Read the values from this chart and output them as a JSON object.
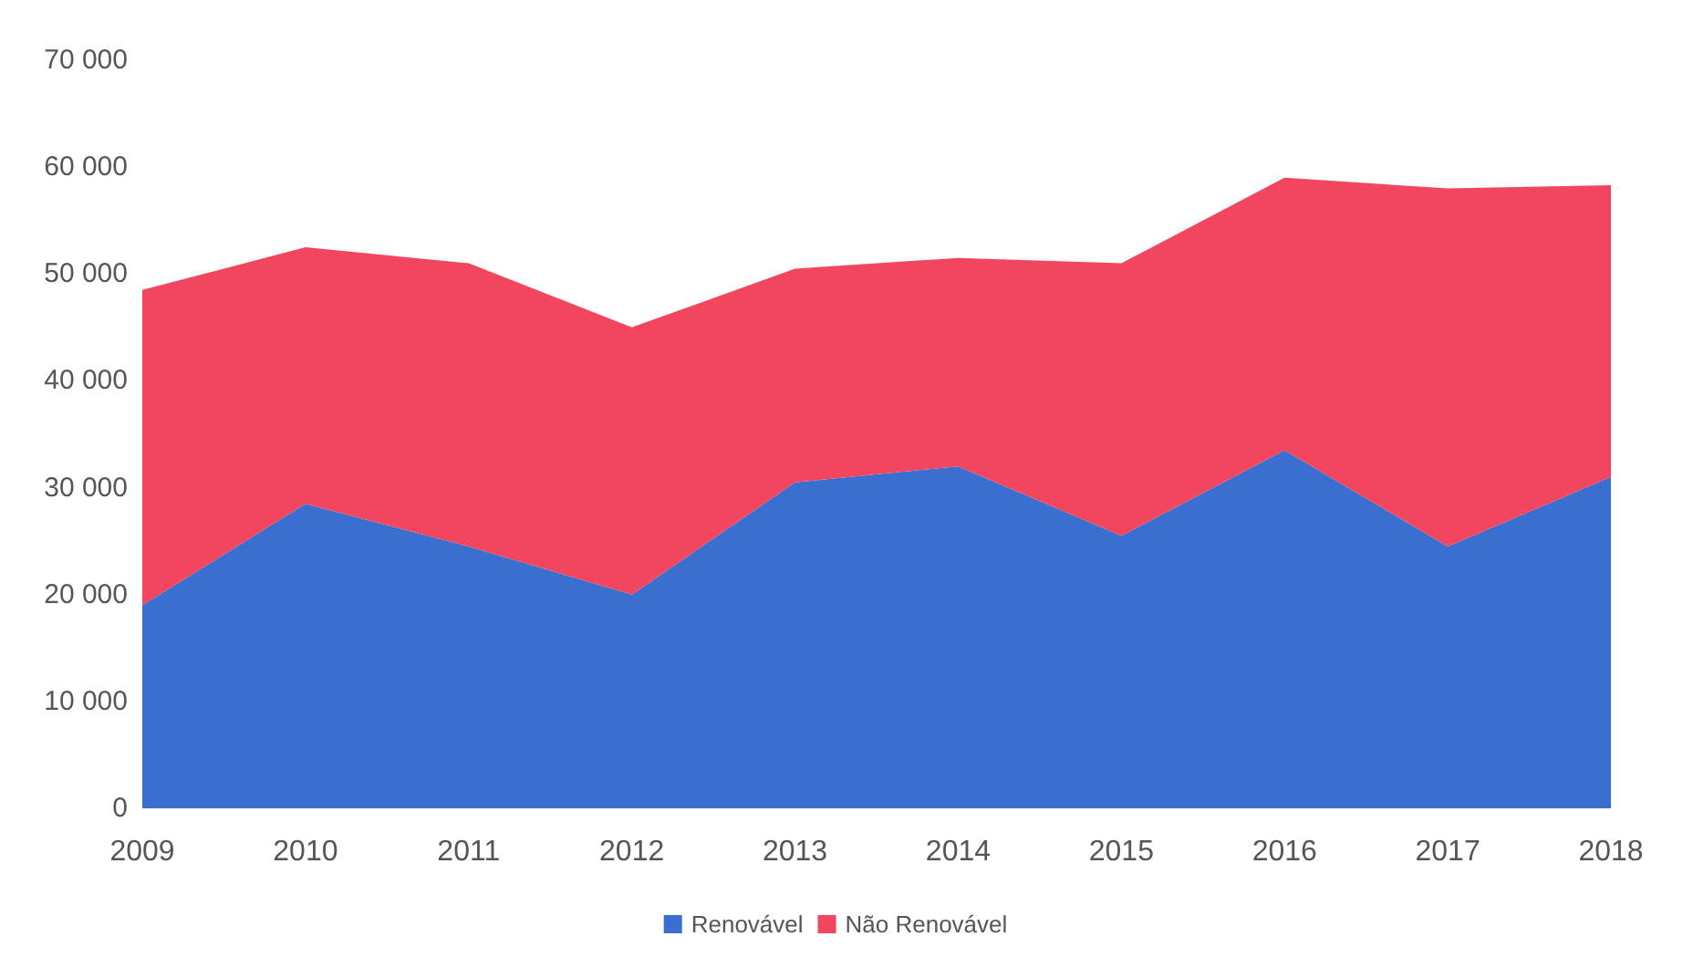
{
  "chart_data": {
    "type": "area",
    "stacked": true,
    "categories": [
      "2009",
      "2010",
      "2011",
      "2012",
      "2013",
      "2014",
      "2015",
      "2016",
      "2017",
      "2018"
    ],
    "series": [
      {
        "name": "Renovável",
        "color": "#3a6fd0",
        "values": [
          19000,
          28500,
          24500,
          20000,
          30500,
          32000,
          25500,
          33500,
          24500,
          31000
        ]
      },
      {
        "name": "Não Renovável",
        "color": "#f2465e",
        "values": [
          29500,
          24000,
          26500,
          25000,
          20000,
          19500,
          25500,
          25500,
          33500,
          27300
        ]
      }
    ],
    "ylim": [
      0,
      70000
    ],
    "yticks": [
      0,
      {
        "value": 10000,
        "label": "10 000"
      },
      {
        "value": 20000,
        "label": "20 000"
      },
      {
        "value": 30000,
        "label": "30 000"
      },
      {
        "value": 40000,
        "label": "40 000"
      },
      {
        "value": 50000,
        "label": "50 000"
      },
      {
        "value": 60000,
        "label": "60 000"
      },
      {
        "value": 70000,
        "label": "70 000"
      }
    ],
    "grid": false,
    "legend": "bottom",
    "marker": "none"
  }
}
